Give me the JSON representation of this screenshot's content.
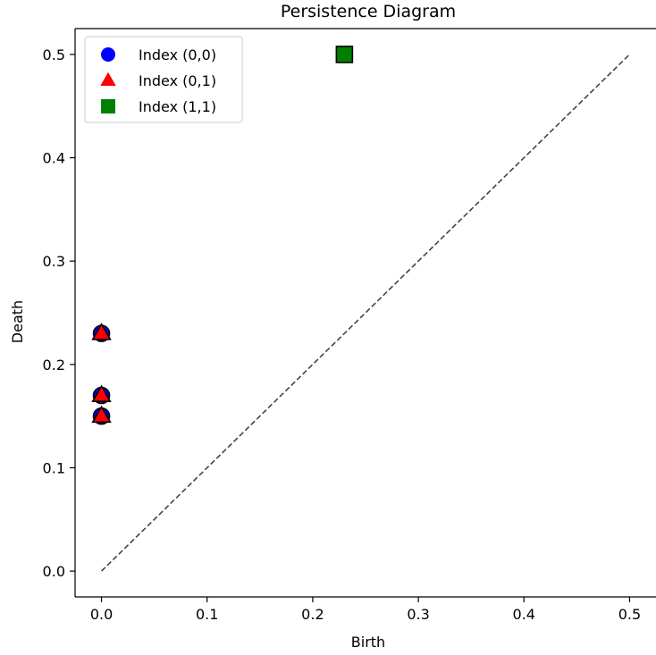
{
  "chart_data": {
    "type": "scatter",
    "title": "Persistence Diagram",
    "xlabel": "Birth",
    "ylabel": "Death",
    "xlim": [
      -0.025,
      0.525
    ],
    "ylim": [
      -0.025,
      0.525
    ],
    "xticks": [
      0.0,
      0.1,
      0.2,
      0.3,
      0.4,
      0.5
    ],
    "yticks": [
      0.0,
      0.1,
      0.2,
      0.3,
      0.4,
      0.5
    ],
    "xtick_labels": [
      "0.0",
      "0.1",
      "0.2",
      "0.3",
      "0.4",
      "0.5"
    ],
    "ytick_labels": [
      "0.0",
      "0.1",
      "0.2",
      "0.3",
      "0.4",
      "0.5"
    ],
    "grid": false,
    "legend_position": "top-left",
    "diagonal": {
      "from": [
        0,
        0
      ],
      "to": [
        0.5,
        0.5
      ],
      "style": "dashed",
      "color": "#444444"
    },
    "series": [
      {
        "name": "Index (0,0)",
        "marker": "circle",
        "color": "#0000ff",
        "points": [
          [
            0.0,
            0.15
          ],
          [
            0.0,
            0.17
          ],
          [
            0.0,
            0.23
          ]
        ]
      },
      {
        "name": "Index (0,1)",
        "marker": "triangle",
        "color": "#ff0000",
        "points": [
          [
            0.0,
            0.15
          ],
          [
            0.0,
            0.17
          ],
          [
            0.0,
            0.23
          ]
        ]
      },
      {
        "name": "Index (1,1)",
        "marker": "square",
        "color": "#008000",
        "points": [
          [
            0.23,
            0.5
          ]
        ]
      }
    ]
  }
}
